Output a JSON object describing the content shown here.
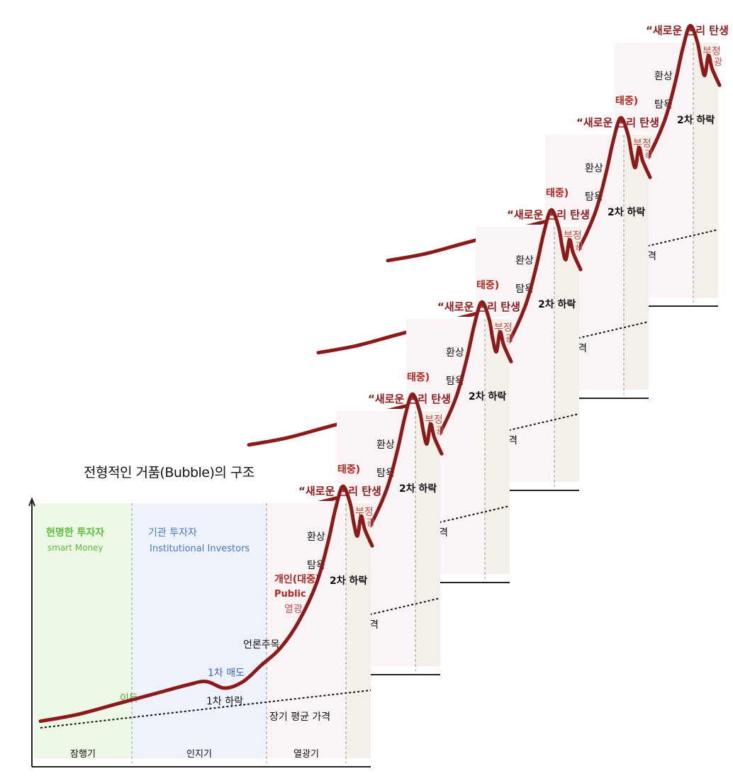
{
  "chart_data": {
    "type": "line",
    "title": "전형적인 거품(Bubble)의 구조",
    "phases": [
      {
        "name": "잠행기",
        "investor": "현명한 투자자",
        "investor_en": "smart Money",
        "color": "#5bbf3a"
      },
      {
        "name": "인지기",
        "investor": "기관 투자자",
        "investor_en": "Institutional Investors",
        "color": "#4a78c2"
      },
      {
        "name": "열광기",
        "investor": "개인(대중)",
        "investor_en": "Public",
        "color": "#b3261e"
      }
    ],
    "events": {
      "profit": "이득",
      "first_sell": "1차 매도",
      "first_drop": "1차 하락",
      "media": "언론주목",
      "enthusiasm": "열광",
      "greed": "탐욕",
      "delusion": "환상",
      "new_paradigm": "“새로운 논리 탄생",
      "second_drop": "2차 하락",
      "denial": "부정",
      "denial_end": "광",
      "long_avg": "장기 평균 가격",
      "avg_short": "평균 가격",
      "phase_short": "광기",
      "public_short": "태중)"
    },
    "repeat_count": 6,
    "series": [
      {
        "points": [
          [
            0,
            2
          ],
          [
            10,
            4
          ],
          [
            20,
            7
          ],
          [
            30,
            10
          ],
          [
            40,
            13
          ],
          [
            45,
            14
          ],
          [
            50,
            12
          ],
          [
            55,
            14
          ],
          [
            60,
            19
          ],
          [
            65,
            24
          ],
          [
            70,
            32
          ],
          [
            75,
            44
          ],
          [
            78,
            56
          ],
          [
            80,
            66
          ],
          [
            82,
            73
          ],
          [
            84,
            68
          ],
          [
            85,
            62
          ],
          [
            86,
            58
          ],
          [
            87,
            64
          ],
          [
            88,
            60
          ],
          [
            90,
            55
          ]
        ]
      }
    ]
  }
}
